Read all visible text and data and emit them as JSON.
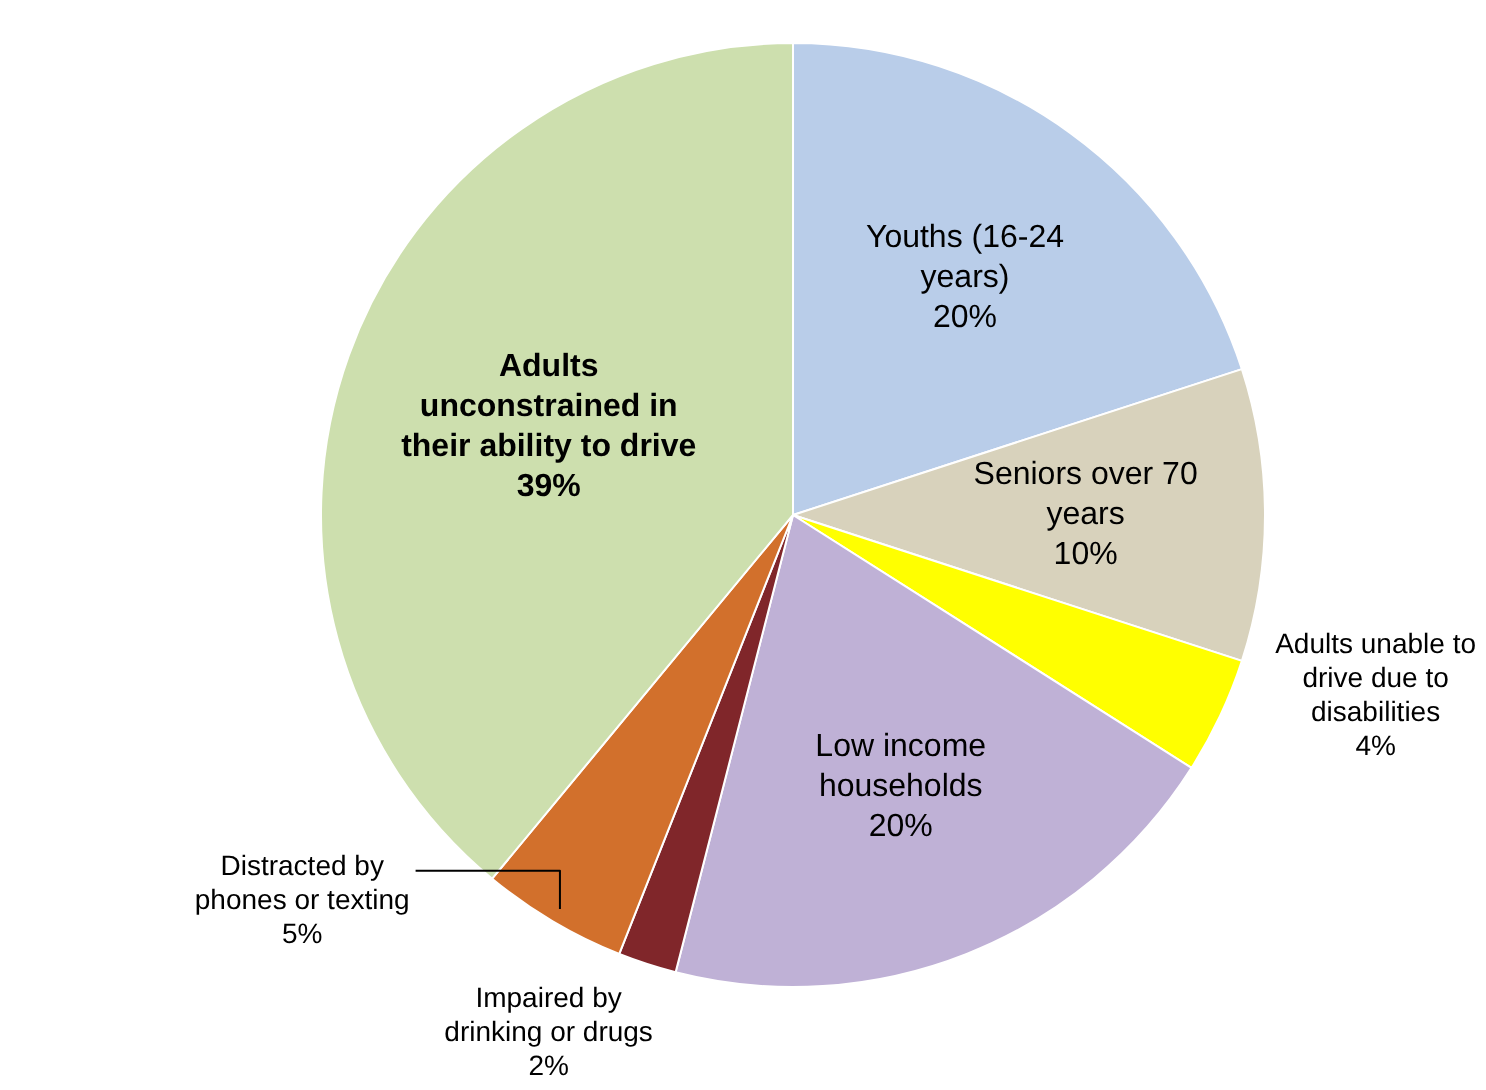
{
  "chart_data": {
    "type": "pie",
    "categories": [
      "Youths (16-24 years)",
      "Seniors over 70 years",
      "Adults unable to drive due to disabilities",
      "Low income households",
      "Impaired by drinking or drugs",
      "Distracted by phones or texting",
      "Adults unconstrained in their ability to drive"
    ],
    "values": [
      20,
      10,
      4,
      20,
      2,
      5,
      39
    ],
    "value_labels": [
      "20%",
      "10%",
      "4%",
      "20%",
      "2%",
      "5%",
      "39%"
    ],
    "colors": [
      "#b9cde9",
      "#d8d2bc",
      "#ffff00",
      "#bfb1d6",
      "#80262a",
      "#d2702c",
      "#cddfae"
    ],
    "legend": false
  }
}
